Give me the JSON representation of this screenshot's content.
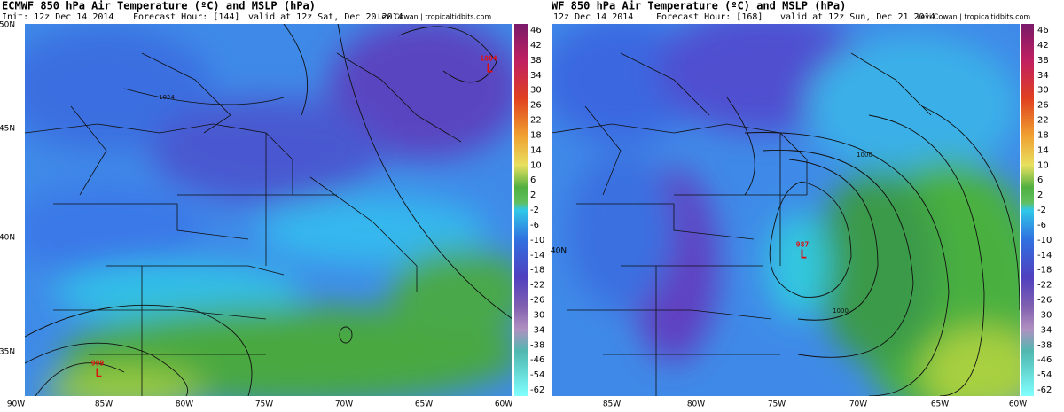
{
  "panels": [
    {
      "title": "ECMWF 850 hPa Air Temperature (ºC) and MSLP (hPa)",
      "init": "Init: 12z Dec 14 2014",
      "forecast_hour": "Forecast Hour: [144]",
      "valid": "valid at 12z Sat, Dec 20 2014",
      "credit": "Levi Cowan | tropicaltidbits.com",
      "lat_labels": [
        "50N",
        "45N",
        "40N",
        "35N"
      ],
      "lon_labels": [
        "90W",
        "85W",
        "80W",
        "75W",
        "70W",
        "65W",
        "60W"
      ],
      "colorbar": [
        46,
        42,
        38,
        34,
        30,
        26,
        22,
        18,
        14,
        10,
        6,
        2,
        -2,
        -6,
        -10,
        -14,
        -18,
        -22,
        -26,
        -30,
        -34,
        -38,
        -46,
        -54,
        -62
      ],
      "lows": [
        {
          "pressure": "1004",
          "symbol": "L"
        },
        {
          "pressure": "999",
          "symbol": "L"
        }
      ],
      "isobar_labels": [
        "1024"
      ]
    },
    {
      "title": "WF 850 hPa Air Temperature (ºC) and MSLP (hPa)",
      "init": "12z Dec 14 2014",
      "forecast_hour": "Forecast Hour: [168]",
      "valid": "valid at 12z Sun, Dec 21 2014",
      "credit": "Levi Cowan | tropicaltidbits.com",
      "lat_labels": [
        "40N"
      ],
      "lon_labels": [
        "85W",
        "80W",
        "75W",
        "70W",
        "65W",
        "60W"
      ],
      "colorbar": [
        46,
        42,
        38,
        34,
        30,
        26,
        22,
        18,
        14,
        10,
        6,
        2,
        -2,
        -6,
        -10,
        -14,
        -18,
        -22,
        -26,
        -30,
        -34,
        -38,
        -46,
        -54,
        -62
      ],
      "lows": [
        {
          "pressure": "987",
          "symbol": "L"
        }
      ],
      "isobar_labels": [
        "1000",
        "1000"
      ]
    }
  ]
}
